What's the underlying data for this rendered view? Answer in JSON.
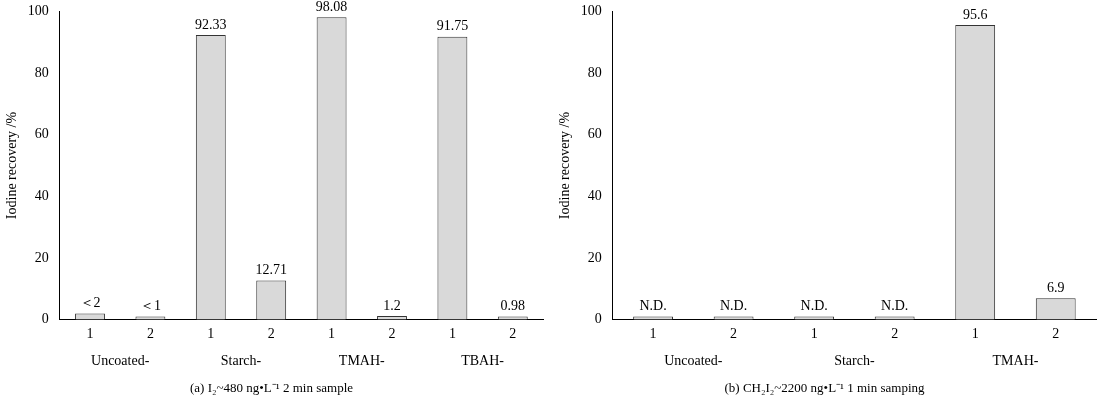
{
  "chart_data": [
    {
      "type": "bar",
      "title": "(a) I₂~480 ng•L⁻¹ 2 min sample",
      "ylabel": "Iodine recovery /%",
      "categories": [
        "1",
        "2",
        "1",
        "2",
        "1",
        "2",
        "1",
        "2"
      ],
      "values": [
        2,
        1,
        92.33,
        12.71,
        98.08,
        1.2,
        91.75,
        0.98
      ],
      "value_labels": [
        "＜2",
        "＜1",
        "92.33",
        "12.71",
        "98.08",
        "1.2",
        "91.75",
        "0.98"
      ],
      "color": "#d9d9d9",
      "ylim": [
        0,
        100
      ],
      "yticks": [
        0,
        20,
        40,
        60,
        80,
        100
      ],
      "annotations": [
        "Uncoated-",
        "Starch-",
        "TMAH-",
        "TBAH-"
      ],
      "grid": false,
      "legend": false
    },
    {
      "type": "bar",
      "title": "(b) CH₂I₂~2200 ng•L⁻¹ 1 min samping",
      "ylabel": "Iodine recovery /%",
      "categories": [
        "1",
        "2",
        "1",
        "2",
        "1",
        "2"
      ],
      "values": [
        0,
        0,
        0,
        0,
        95.6,
        6.9
      ],
      "value_labels": [
        "N.D.",
        "N.D.",
        "N.D.",
        "N.D.",
        "95.6",
        "6.9"
      ],
      "color": "#d9d9d9",
      "ylim": [
        0,
        100
      ],
      "yticks": [
        0,
        20,
        40,
        60,
        80,
        100
      ],
      "annotations": [
        "Uncoated-",
        "Starch-",
        "TMAH-"
      ],
      "grid": false,
      "legend": false
    }
  ]
}
